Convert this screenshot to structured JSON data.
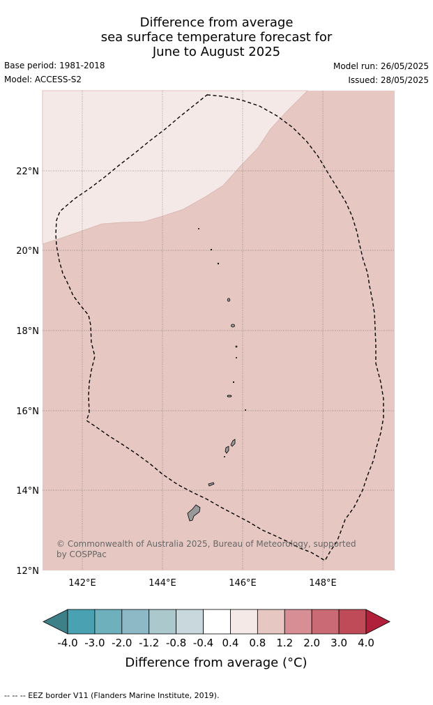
{
  "title": {
    "line1": "Difference from average",
    "line2": "sea surface temperature forecast for",
    "line3": "June to August 2025"
  },
  "meta": {
    "base_period": "Base period: 1981-2018",
    "model": "Model: ACCESS-S2",
    "model_run": "Model run: 26/05/2025",
    "issued": "Issued: 28/05/2025"
  },
  "map": {
    "lat_labels": [
      "22°N",
      "20°N",
      "18°N",
      "16°N",
      "14°N",
      "12°N"
    ],
    "lon_labels": [
      "142°E",
      "144°E",
      "146°E",
      "148°E"
    ],
    "copyright_line1": "© Commonwealth of Australia 2025, Bureau of Meteorology, supported",
    "copyright_line2": "by COSPPac",
    "colors": {
      "anomaly_0_4_to_0_8": "#f5e9e8",
      "anomaly_0_8_to_1_2": "#e6c7c2",
      "land": "#999999",
      "eez_border": "#000000"
    }
  },
  "colorbar": {
    "ticks": [
      "-4.0",
      "-3.0",
      "-2.0",
      "-1.2",
      "-0.8",
      "-0.4",
      "0.4",
      "0.8",
      "1.2",
      "2.0",
      "3.0",
      "4.0"
    ],
    "colors": [
      "#3d8088",
      "#4aa1b1",
      "#6fb0bd",
      "#8cb9c5",
      "#abc8cd",
      "#c8d8dc",
      "#ffffff",
      "#f5e9e8",
      "#e6c7c2",
      "#d88e95",
      "#c96a74",
      "#c04b58",
      "#b0203a"
    ],
    "label": "Difference from average (°C)"
  },
  "footer": "--  --  -- EEZ border V11 (Flanders Marine Institute, 2019)."
}
